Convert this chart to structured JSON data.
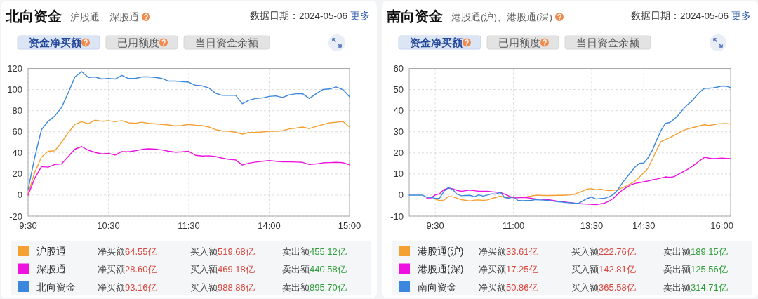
{
  "chart_data": [
    {
      "type": "line",
      "title": "北向资金",
      "subtitle": "沪股通、深股通",
      "annotations": [
        "数据日期：2024-05-06",
        "更多",
        "资金净买额",
        "已用额度",
        "当日资金余额",
        "净买额",
        "64.55亿",
        "买入额",
        "519.68亿",
        "卖出额",
        "455.12亿",
        "净买额",
        "28.60亿",
        "买入额",
        "469.18亿",
        "卖出额",
        "440.58亿",
        "净买额",
        "93.16亿",
        "买入额",
        "988.86亿",
        "卖出额",
        "895.70亿"
      ],
      "categories": [
        "9:30",
        null,
        null,
        null,
        null,
        null,
        null,
        null,
        null,
        null,
        null,
        null,
        "10:30",
        null,
        null,
        null,
        null,
        null,
        null,
        null,
        null,
        null,
        null,
        null,
        "11:30",
        null,
        null,
        null,
        null,
        null,
        null,
        null,
        null,
        null,
        null,
        null,
        "14:00",
        null,
        null,
        null,
        null,
        null,
        null,
        null,
        null,
        null,
        null,
        null,
        "15:00"
      ],
      "ylim": [
        -20,
        120
      ],
      "yticks": [
        -20,
        0,
        20,
        40,
        60,
        80,
        100,
        120
      ],
      "grid": true,
      "legend": "bottom",
      "series": [
        {
          "name": "沪股通",
          "color": "#f5a033",
          "values": [
            1.5,
            21.5,
            36,
            41.5,
            42,
            50,
            59,
            67,
            69.5,
            67.5,
            71,
            70,
            70.5,
            69.5,
            70.5,
            68.5,
            68,
            69,
            68,
            67.5,
            67,
            66.5,
            65.5,
            66,
            67,
            66.2,
            65.8,
            64.5,
            62,
            60.8,
            60.5,
            59.5,
            57.8,
            59.3,
            59.3,
            59.8,
            60.5,
            60.5,
            61,
            62.7,
            63.5,
            64.5,
            63,
            65,
            66.7,
            68.5,
            69,
            69.8,
            64.5
          ]
        },
        {
          "name": "深股通",
          "color": "#ee11e0",
          "values": [
            0,
            16,
            27,
            26.5,
            29,
            29.5,
            36.5,
            43.5,
            46,
            42.5,
            40.5,
            39,
            39.5,
            38,
            41.3,
            41,
            42,
            43.3,
            43.8,
            43.5,
            42.8,
            41.5,
            40.7,
            41,
            41.5,
            37.7,
            37,
            37.3,
            36.5,
            35,
            33.8,
            33.3,
            28.5,
            30.3,
            31.3,
            32,
            32.7,
            32,
            31.5,
            31.5,
            31.3,
            31,
            29,
            29.5,
            30.5,
            30.8,
            31,
            30.7,
            28.6
          ]
        },
        {
          "name": "北向资金",
          "color": "#3a87dd",
          "values": [
            5,
            36,
            62,
            70,
            75,
            83,
            97,
            112,
            117,
            111.5,
            112,
            110,
            110.5,
            110,
            113.5,
            110.5,
            110.5,
            112,
            112,
            111.5,
            110.5,
            108,
            108,
            107.5,
            107,
            104,
            103.5,
            101.5,
            96.5,
            94.5,
            94.5,
            94.5,
            86.5,
            90,
            91.5,
            92,
            93.5,
            94,
            92.5,
            95,
            96,
            96,
            91.5,
            96,
            100,
            100.5,
            102.5,
            100,
            93.2
          ]
        }
      ]
    },
    {
      "type": "line",
      "title": "南向资金",
      "subtitle": "港股通(沪)、港股通(深)",
      "annotations": [
        "数据日期：2024-05-06",
        "更多",
        "资金净买额",
        "已用额度",
        "当日资金余额",
        "净买额",
        "33.61亿",
        "买入额",
        "222.76亿",
        "卖出额",
        "189.15亿",
        "净买额",
        "17.25亿",
        "买入额",
        "142.81亿",
        "卖出额",
        "125.56亿",
        "净买额",
        "50.86亿",
        "买入额",
        "365.58亿",
        "卖出额",
        "314.71亿"
      ],
      "categories": [
        null,
        null,
        null,
        null,
        null,
        null,
        "9:30",
        null,
        null,
        null,
        null,
        null,
        null,
        null,
        null,
        null,
        null,
        null,
        null,
        null,
        null,
        null,
        null,
        null,
        "11:00",
        null,
        null,
        null,
        null,
        null,
        null,
        null,
        null,
        null,
        null,
        null,
        null,
        null,
        null,
        null,
        null,
        null,
        "13:30",
        null,
        null,
        null,
        null,
        null,
        null,
        null,
        null,
        null,
        null,
        null,
        "14:30",
        null,
        null,
        null,
        null,
        null,
        null,
        null,
        null,
        null,
        null,
        null,
        null,
        null,
        null,
        null,
        null,
        null,
        "16:00",
        null,
        null
      ],
      "ylim": [
        -10,
        60
      ],
      "yticks": [
        -10,
        0,
        10,
        20,
        30,
        40,
        50,
        60
      ],
      "grid": true,
      "legend": "bottom",
      "series": [
        {
          "name": "港股通(沪)",
          "color": "#f5a033",
          "values": [
            null,
            null,
            null,
            null,
            null,
            null,
            -1.9,
            -2.6,
            -2.4,
            -0.7,
            -0.8,
            -1.5,
            -2.2,
            -2.5,
            -2.8,
            -2.4,
            -2.3,
            -2.5,
            -2.3,
            -1.7,
            -1.1,
            -0.5,
            -1.1,
            -1.3,
            -1,
            -1,
            -1,
            -0.8,
            -0.5,
            -0.1,
            -0.1,
            -0.2,
            -0.2,
            -0.2,
            -0.1,
            -0.1,
            0,
            0.1,
            0.4,
            1.2,
            1.9,
            2.9,
            3,
            2.5,
            2.8,
            2.4,
            2.1,
            2.3,
            2.5,
            3.4,
            4.3,
            5.4,
            6.6,
            8.5,
            10.5,
            12.8,
            17,
            21.5,
            25.4,
            26.3,
            27.2,
            28.3,
            29.4,
            30.5,
            31.3,
            31.8,
            32.3,
            32.9,
            33.3,
            33,
            33.3,
            33.7,
            33.8,
            33.9,
            33.6
          ]
        },
        {
          "name": "港股通(深)",
          "color": "#ee11e0",
          "values": [
            null,
            null,
            null,
            null,
            -1.4,
            -1.4,
            0.1,
            0.6,
            2.6,
            3.3,
            3,
            2.2,
            1.8,
            2.1,
            2.4,
            2.1,
            1.8,
            1.8,
            1.8,
            1.6,
            1.4,
            1.3,
            0.4,
            -0.5,
            -1.3,
            -1.3,
            -1.1,
            -1.2,
            -1.5,
            -1.8,
            -1.9,
            -2.1,
            -2.2,
            -2.5,
            -2.8,
            -3,
            -3.3,
            -3.6,
            -3.8,
            -4,
            -4.2,
            -4.3,
            -4.4,
            -4.5,
            -4.2,
            -3.8,
            -2.9,
            -1.6,
            0.5,
            2.3,
            3.6,
            4.8,
            5.5,
            5.9,
            6.3,
            6.7,
            7.2,
            7.6,
            8.1,
            8.6,
            8.4,
            8.7,
            9.9,
            11,
            12.1,
            13.4,
            14.9,
            16.5,
            17.9,
            17.5,
            17.3,
            17.4,
            17.5,
            17.4,
            17.3
          ]
        },
        {
          "name": "南向资金",
          "color": "#3a87dd",
          "values": [
            0,
            0,
            0,
            0,
            -1,
            -1,
            -1.6,
            -1.5,
            1.8,
            3.5,
            2.7,
            0.5,
            -0.3,
            -0.2,
            -0.1,
            -0.8,
            0.1,
            -0.5,
            0,
            0.6,
            0.5,
            1.3,
            -1.2,
            -1.5,
            -0.8,
            -2.5,
            -2.7,
            -2.6,
            -2.5,
            -2.2,
            -2.3,
            -2.4,
            -2.5,
            -2.8,
            -3.1,
            -3.3,
            -3.5,
            -3.6,
            -3.8,
            -3.9,
            -2.7,
            -1.6,
            -1,
            -1.9,
            -1.7,
            -1.5,
            -0.8,
            0.3,
            2.5,
            5.5,
            8.2,
            10.7,
            13.3,
            15,
            15.2,
            17.7,
            21.3,
            26.2,
            30.7,
            34,
            34.4,
            36,
            38,
            40.5,
            42.7,
            44.4,
            46.8,
            49,
            50.6,
            50.6,
            50.8,
            51.2,
            51.7,
            51.6,
            50.9
          ]
        }
      ]
    }
  ]
}
